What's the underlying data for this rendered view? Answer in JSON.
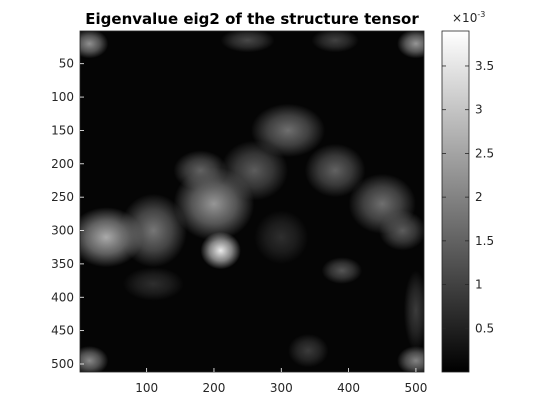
{
  "chart_data": {
    "type": "heatmap",
    "title": "Eigenvalue eig2 of the structure tensor",
    "xlabel": "",
    "ylabel": "",
    "x_ticks": [
      100,
      200,
      300,
      400,
      500
    ],
    "y_ticks": [
      50,
      100,
      150,
      200,
      250,
      300,
      350,
      400,
      450,
      500
    ],
    "xlim": [
      1,
      512
    ],
    "ylim": [
      1,
      512
    ],
    "y_direction": "reverse",
    "colormap": "gray",
    "colorbar": {
      "ticks": [
        0.5,
        1,
        1.5,
        2,
        2.5,
        3,
        3.5
      ],
      "tick_labels": [
        "0.5",
        "1",
        "1.5",
        "2",
        "2.5",
        "3",
        "3.5"
      ],
      "range": [
        0.0,
        3.9
      ],
      "exponent_label": "×10",
      "exponent_power": "-3"
    },
    "grid": false,
    "blobs": [
      {
        "x": 40,
        "y": 310,
        "rx": 55,
        "ry": 45,
        "v": 2.6
      },
      {
        "x": 110,
        "y": 300,
        "rx": 50,
        "ry": 55,
        "v": 1.8
      },
      {
        "x": 200,
        "y": 260,
        "rx": 60,
        "ry": 55,
        "v": 2.3
      },
      {
        "x": 210,
        "y": 330,
        "rx": 30,
        "ry": 28,
        "v": 3.6
      },
      {
        "x": 180,
        "y": 210,
        "rx": 40,
        "ry": 30,
        "v": 1.5
      },
      {
        "x": 310,
        "y": 150,
        "rx": 55,
        "ry": 40,
        "v": 1.7
      },
      {
        "x": 260,
        "y": 210,
        "rx": 50,
        "ry": 45,
        "v": 1.4
      },
      {
        "x": 380,
        "y": 210,
        "rx": 45,
        "ry": 40,
        "v": 1.5
      },
      {
        "x": 450,
        "y": 260,
        "rx": 50,
        "ry": 45,
        "v": 1.7
      },
      {
        "x": 480,
        "y": 300,
        "rx": 35,
        "ry": 30,
        "v": 1.4
      },
      {
        "x": 390,
        "y": 360,
        "rx": 30,
        "ry": 20,
        "v": 1.3
      },
      {
        "x": 300,
        "y": 310,
        "rx": 40,
        "ry": 40,
        "v": 0.7
      },
      {
        "x": 340,
        "y": 480,
        "rx": 30,
        "ry": 25,
        "v": 0.9
      },
      {
        "x": 15,
        "y": 20,
        "rx": 28,
        "ry": 22,
        "v": 2.2
      },
      {
        "x": 500,
        "y": 20,
        "rx": 28,
        "ry": 22,
        "v": 2.3
      },
      {
        "x": 15,
        "y": 495,
        "rx": 28,
        "ry": 22,
        "v": 2.1
      },
      {
        "x": 500,
        "y": 495,
        "rx": 28,
        "ry": 22,
        "v": 2.0
      },
      {
        "x": 250,
        "y": 15,
        "rx": 40,
        "ry": 18,
        "v": 1.1
      },
      {
        "x": 380,
        "y": 15,
        "rx": 35,
        "ry": 18,
        "v": 1.0
      },
      {
        "x": 500,
        "y": 420,
        "rx": 18,
        "ry": 60,
        "v": 0.9
      },
      {
        "x": 110,
        "y": 380,
        "rx": 45,
        "ry": 25,
        "v": 0.7
      }
    ]
  }
}
